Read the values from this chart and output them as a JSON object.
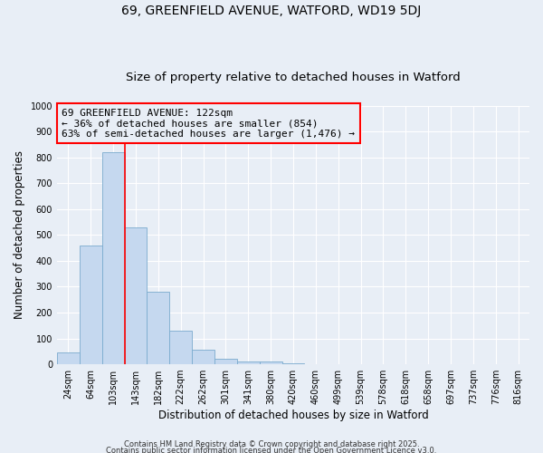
{
  "title": "69, GREENFIELD AVENUE, WATFORD, WD19 5DJ",
  "subtitle": "Size of property relative to detached houses in Watford",
  "xlabel": "Distribution of detached houses by size in Watford",
  "ylabel": "Number of detached properties",
  "categories": [
    "24sqm",
    "64sqm",
    "103sqm",
    "143sqm",
    "182sqm",
    "222sqm",
    "262sqm",
    "301sqm",
    "341sqm",
    "380sqm",
    "420sqm",
    "460sqm",
    "499sqm",
    "539sqm",
    "578sqm",
    "618sqm",
    "658sqm",
    "697sqm",
    "737sqm",
    "776sqm",
    "816sqm"
  ],
  "values": [
    46,
    460,
    820,
    530,
    280,
    130,
    57,
    22,
    12,
    12,
    5,
    0,
    0,
    0,
    0,
    0,
    0,
    0,
    0,
    0,
    0
  ],
  "bar_color": "#c5d8ef",
  "bar_edge_color": "#7aabce",
  "background_color": "#e8eef6",
  "red_line_index": 2,
  "ylim": [
    0,
    1000
  ],
  "yticks": [
    0,
    100,
    200,
    300,
    400,
    500,
    600,
    700,
    800,
    900,
    1000
  ],
  "annotation_text": "69 GREENFIELD AVENUE: 122sqm\n← 36% of detached houses are smaller (854)\n63% of semi-detached houses are larger (1,476) →",
  "footer_line1": "Contains HM Land Registry data © Crown copyright and database right 2025.",
  "footer_line2": "Contains public sector information licensed under the Open Government Licence v3.0.",
  "title_fontsize": 10,
  "subtitle_fontsize": 9.5,
  "tick_fontsize": 7,
  "label_fontsize": 8.5,
  "annotation_fontsize": 8
}
